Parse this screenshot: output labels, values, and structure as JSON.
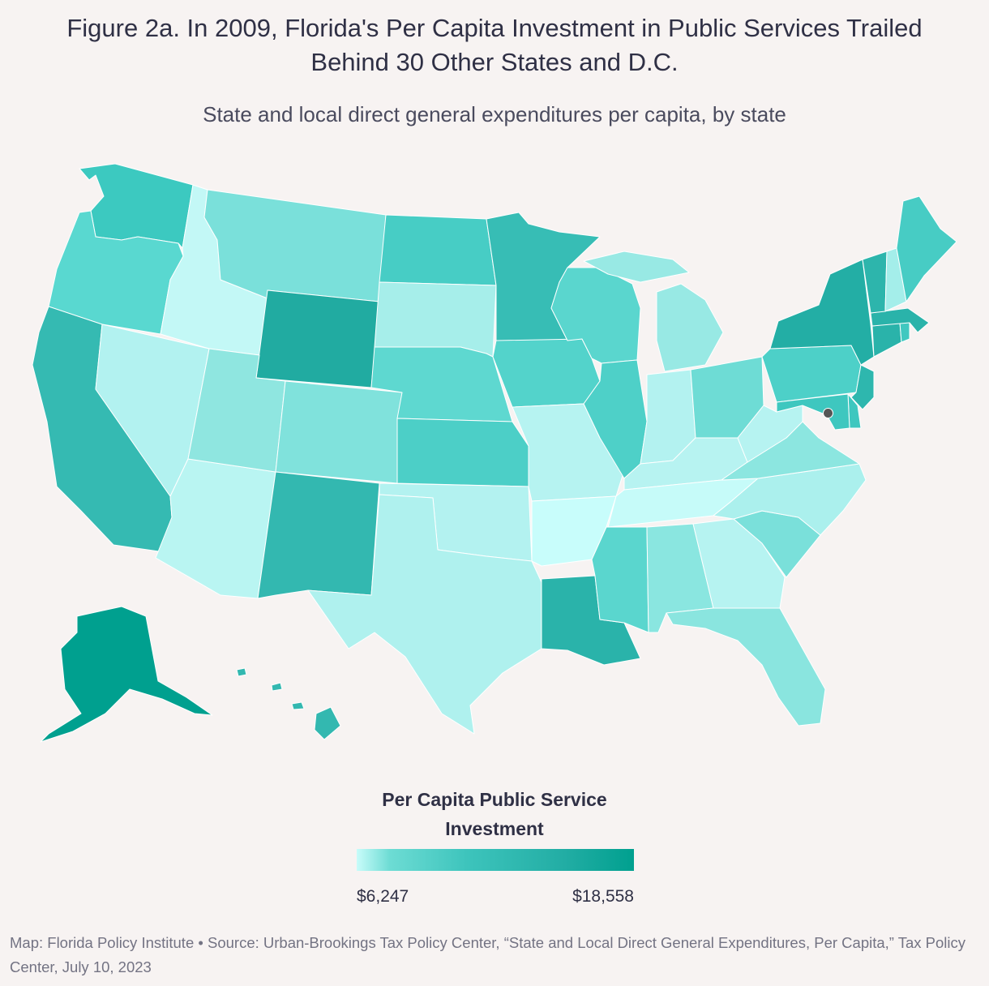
{
  "title": "Figure 2a. In 2009, Florida's Per Capita Investment in Public Services Trailed Behind 30 Other States and D.C.",
  "subtitle": "State and local direct general expenditures per capita, by state",
  "legend": {
    "title": "Per Capita Public Service Investment",
    "min_label": "$6,247",
    "max_label": "$18,558",
    "min_color": "#c8fcfa",
    "max_color": "#00a08f"
  },
  "footer": "Map: Florida Policy Institute • Source: Urban-Brookings Tax Policy Center, “State and Local Direct General Expenditures, Per Capita,” Tax Policy Center, July 10, 2023",
  "state_colors": {
    "WA": "#3cc9c0",
    "OR": "#59d8d0",
    "CA": "#35bab2",
    "ID": "#c3f8f6",
    "NV": "#b2f2f0",
    "AZ": "#b9f5f2",
    "MT": "#7ae0da",
    "WY": "#21aba1",
    "UT": "#8fe6e0",
    "CO": "#80e2dc",
    "NM": "#33b8b0",
    "ND": "#47cdc5",
    "SD": "#a6eeea",
    "NE": "#5ed8d0",
    "KS": "#4ccfc7",
    "OK": "#b3f2f0",
    "TX": "#aff1ee",
    "MN": "#37bdb5",
    "IA": "#53d3cb",
    "MO": "#b6f3f1",
    "AR": "#c8fdfb",
    "LA": "#2ab3aa",
    "WI": "#5ad6ce",
    "IL": "#4ed0c8",
    "MI": "#98e9e4",
    "IN": "#b3f2f0",
    "OH": "#6edcd5",
    "KY": "#b7f3f1",
    "TN": "#c6fbf9",
    "MS": "#5ad6ce",
    "AL": "#8ae6e0",
    "GA": "#b6f3f1",
    "FL": "#8ae5df",
    "SC": "#7ae0da",
    "NC": "#abf0ed",
    "VA": "#8ce6e0",
    "WV": "#b6f3f1",
    "PA": "#4dd0c8",
    "NY": "#23aea5",
    "NJ": "#2eb7ae",
    "DE": "#3ec7bf",
    "MD": "#3ec7bf",
    "CT": "#2ab3aa",
    "RI": "#40c8c0",
    "MA": "#2ab3aa",
    "VT": "#2db5ac",
    "NH": "#a4eeea",
    "ME": "#47ccc4",
    "AK": "#00a08f",
    "HI": "#33b8b0"
  }
}
